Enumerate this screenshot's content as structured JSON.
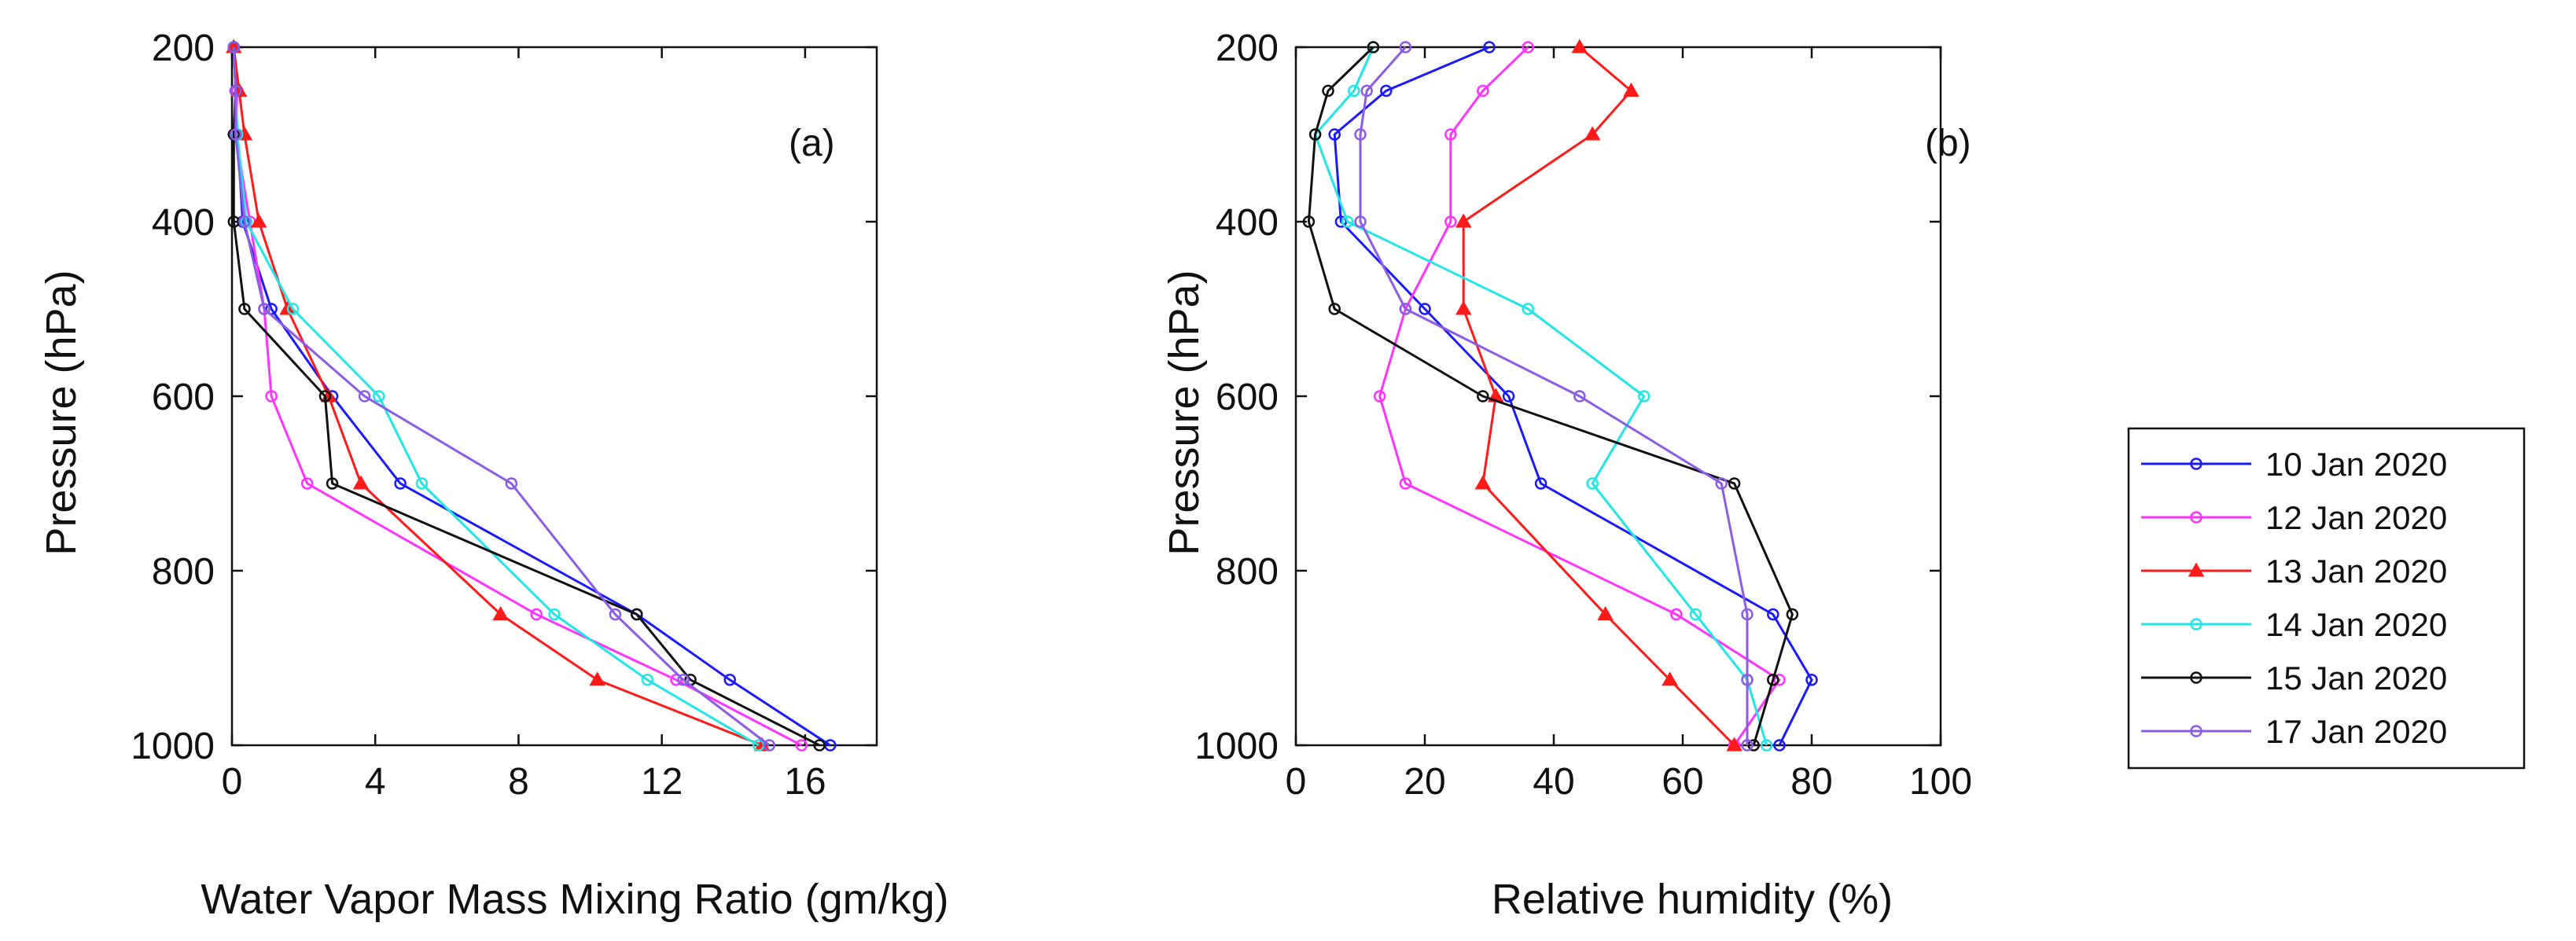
{
  "chart_data": [
    {
      "type": "line",
      "panel_label": "(a)",
      "xlabel": "Water Vapor Mass Mixing Ratio (gm/kg)",
      "ylabel": "Pressure (hPa)",
      "xlim": [
        0,
        18
      ],
      "ylim": [
        200,
        1000
      ],
      "y_reversed": true,
      "xticks": [
        "0",
        "4",
        "8",
        "12",
        "16"
      ],
      "yticks": [
        "200",
        "400",
        "600",
        "800",
        "1000"
      ],
      "pressure": [
        200,
        250,
        300,
        400,
        500,
        600,
        700,
        850,
        925,
        1000
      ],
      "series": [
        {
          "name": "10 Jan 2020",
          "values": [
            0.05,
            0.1,
            0.15,
            0.3,
            1.1,
            2.8,
            4.7,
            11.3,
            13.9,
            16.7
          ]
        },
        {
          "name": "12 Jan 2020",
          "values": [
            0.05,
            0.15,
            0.1,
            0.5,
            0.9,
            1.1,
            2.1,
            8.5,
            12.4,
            15.9
          ]
        },
        {
          "name": "13 Jan 2020",
          "values": [
            0.05,
            0.2,
            0.35,
            0.75,
            1.55,
            2.7,
            3.6,
            7.5,
            10.2,
            14.8
          ]
        },
        {
          "name": "14 Jan 2020",
          "values": [
            0.05,
            0.1,
            0.15,
            0.4,
            1.7,
            4.1,
            5.3,
            9.0,
            11.6,
            14.7
          ]
        },
        {
          "name": "15 Jan 2020",
          "values": [
            0.05,
            0.1,
            0.05,
            0.05,
            0.35,
            2.6,
            2.8,
            11.3,
            12.8,
            16.4
          ]
        },
        {
          "name": "17 Jan 2020",
          "values": [
            0.05,
            0.1,
            0.1,
            0.35,
            0.9,
            3.7,
            7.8,
            10.7,
            12.6,
            15.0
          ]
        }
      ]
    },
    {
      "type": "line",
      "panel_label": "(b)",
      "xlabel": "Relative humidity (%)",
      "ylabel": "Pressure (hPa)",
      "xlim": [
        0,
        100
      ],
      "ylim": [
        200,
        1000
      ],
      "y_reversed": true,
      "xticks": [
        "0",
        "20",
        "40",
        "60",
        "80",
        "100"
      ],
      "yticks": [
        "200",
        "400",
        "600",
        "800",
        "1000"
      ],
      "pressure": [
        200,
        250,
        300,
        400,
        500,
        600,
        700,
        850,
        925,
        1000
      ],
      "series": [
        {
          "name": "10 Jan 2020",
          "values": [
            30,
            14,
            6,
            7,
            20,
            33,
            38,
            74,
            80,
            75
          ]
        },
        {
          "name": "12 Jan 2020",
          "values": [
            36,
            29,
            24,
            24,
            17,
            13,
            17,
            59,
            75,
            68
          ]
        },
        {
          "name": "13 Jan 2020",
          "values": [
            44,
            52,
            46,
            26,
            26,
            31,
            29,
            48,
            58,
            68
          ]
        },
        {
          "name": "14 Jan 2020",
          "values": [
            12,
            9,
            3,
            8,
            36,
            54,
            46,
            62,
            70,
            73
          ]
        },
        {
          "name": "15 Jan 2020",
          "values": [
            12,
            5,
            3,
            2,
            6,
            29,
            68,
            77,
            74,
            71
          ]
        },
        {
          "name": "17 Jan 2020",
          "values": [
            17,
            11,
            10,
            10,
            17,
            44,
            66,
            70,
            70,
            70
          ]
        }
      ]
    }
  ],
  "legend": {
    "placement": "right",
    "entries": [
      {
        "label": "10 Jan 2020",
        "color": "#1a1aff",
        "marker": "circle"
      },
      {
        "label": "12 Jan 2020",
        "color": "#ff33ff",
        "marker": "circle"
      },
      {
        "label": "13 Jan 2020",
        "color": "#ff1a1a",
        "marker": "triangle"
      },
      {
        "label": "14 Jan 2020",
        "color": "#22e6e6",
        "marker": "circle"
      },
      {
        "label": "15 Jan 2020",
        "color": "#111111",
        "marker": "circle"
      },
      {
        "label": "17 Jan 2020",
        "color": "#8c5ce6",
        "marker": "circle"
      }
    ]
  }
}
